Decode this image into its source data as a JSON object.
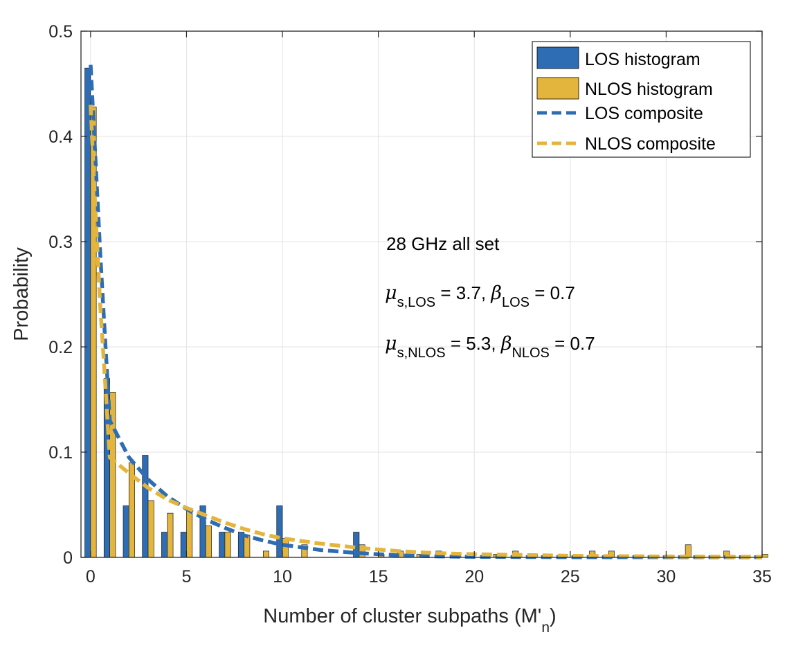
{
  "chart_data": {
    "type": "bar",
    "title": "",
    "xlabel": "Number of cluster subpaths (M'",
    "xlabel_sub": "n",
    "xlabel_close": ")",
    "ylabel": "Probability",
    "xlim": [
      -0.5,
      35
    ],
    "ylim": [
      0,
      0.5
    ],
    "xticks": [
      0,
      5,
      10,
      15,
      20,
      25,
      30,
      35
    ],
    "yticks": [
      0,
      0.1,
      0.2,
      0.3,
      0.4,
      0.5
    ],
    "grid": true,
    "legend_position": "top-right",
    "colors": {
      "los": "#2E6DB4",
      "nlos": "#E3B53D"
    },
    "legend": {
      "los_hist": "LOS histogram",
      "nlos_hist": "NLOS histogram",
      "los_comp": "LOS composite",
      "nlos_comp": "NLOS composite"
    },
    "annotation": {
      "title": "28 GHz all set",
      "mu": "μ",
      "beta": "β",
      "line1": {
        "mu_sub": "s,LOS",
        "mu_val": " = 3.7, ",
        "beta_sub": "LOS",
        "beta_val": " = 0.7"
      },
      "line2": {
        "mu_sub": "s,NLOS",
        "mu_val": " = 5.3, ",
        "beta_sub": "NLOS",
        "beta_val": " = 0.7"
      }
    },
    "series": [
      {
        "name": "LOS histogram",
        "kind": "bar",
        "x": [
          0,
          1,
          2,
          3,
          4,
          5,
          6,
          7,
          8,
          10,
          14
        ],
        "values": [
          0.465,
          0.17,
          0.049,
          0.097,
          0.024,
          0.024,
          0.049,
          0.024,
          0.024,
          0.049,
          0.024
        ]
      },
      {
        "name": "NLOS histogram",
        "kind": "bar",
        "x": [
          0,
          1,
          2,
          3,
          4,
          5,
          6,
          7,
          8,
          9,
          10,
          11,
          14,
          15,
          16,
          17,
          18,
          19,
          21,
          22,
          23,
          26,
          27,
          31,
          33,
          35
        ],
        "values": [
          0.428,
          0.157,
          0.09,
          0.054,
          0.042,
          0.045,
          0.03,
          0.024,
          0.021,
          0.006,
          0.018,
          0.012,
          0.012,
          0.003,
          0.006,
          0.003,
          0.006,
          0.003,
          0.003,
          0.006,
          0.003,
          0.006,
          0.006,
          0.012,
          0.006,
          0.003
        ]
      },
      {
        "name": "LOS composite",
        "kind": "line",
        "x": [
          0,
          0.25,
          0.5,
          0.75,
          1,
          2,
          3,
          4,
          5,
          6,
          7,
          8,
          9,
          10,
          12,
          14,
          16,
          18,
          20,
          25,
          30,
          35
        ],
        "values": [
          0.468,
          0.38,
          0.29,
          0.21,
          0.13,
          0.095,
          0.074,
          0.058,
          0.046,
          0.036,
          0.028,
          0.021,
          0.016,
          0.012,
          0.007,
          0.004,
          0.002,
          0.001,
          0.0005,
          0.0002,
          0.0001,
          0.0001
        ]
      },
      {
        "name": "NLOS composite",
        "kind": "line",
        "x": [
          0,
          0.25,
          0.5,
          0.75,
          1,
          2,
          3,
          4,
          5,
          6,
          7,
          8,
          9,
          10,
          12,
          14,
          16,
          18,
          20,
          25,
          30,
          35
        ],
        "values": [
          0.43,
          0.33,
          0.24,
          0.17,
          0.095,
          0.08,
          0.066,
          0.055,
          0.047,
          0.04,
          0.033,
          0.027,
          0.022,
          0.018,
          0.013,
          0.009,
          0.006,
          0.004,
          0.003,
          0.0015,
          0.0008,
          0.0005
        ]
      }
    ]
  }
}
